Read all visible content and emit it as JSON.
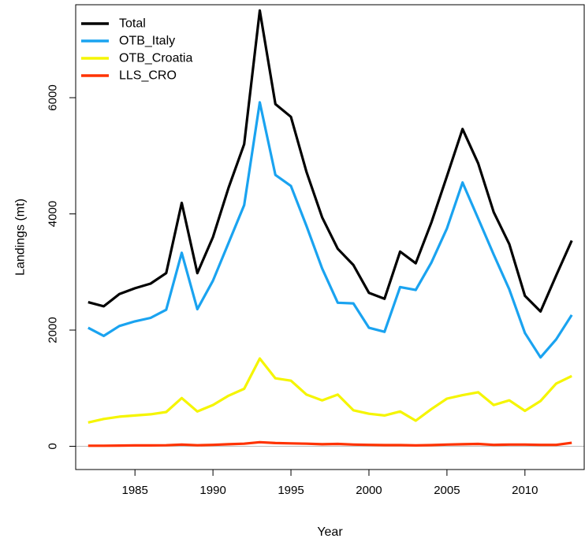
{
  "chart_data": {
    "type": "line",
    "title": "",
    "xlabel": "Year",
    "ylabel": "Landings (mt)",
    "xlim": [
      1981.2,
      2013.8
    ],
    "ylim": [
      -400,
      7600
    ],
    "x_ticks": [
      1985,
      1990,
      1995,
      2000,
      2005,
      2010
    ],
    "y_ticks": [
      0,
      2000,
      4000,
      6000
    ],
    "grid": false,
    "legend_position": "top-left",
    "zero_reference_line": true,
    "x": [
      1982,
      1983,
      1984,
      1985,
      1986,
      1987,
      1988,
      1989,
      1990,
      1991,
      1992,
      1993,
      1994,
      1995,
      1996,
      1997,
      1998,
      1999,
      2000,
      2001,
      2002,
      2003,
      2004,
      2005,
      2006,
      2007,
      2008,
      2009,
      2010,
      2011,
      2012,
      2013
    ],
    "series": [
      {
        "name": "Total",
        "color": "#000000",
        "values": [
          2480,
          2410,
          2620,
          2720,
          2800,
          2980,
          4190,
          2980,
          3600,
          4450,
          5200,
          7500,
          5890,
          5670,
          4720,
          3940,
          3400,
          3120,
          2640,
          2540,
          3350,
          3150,
          3850,
          4650,
          5460,
          4870,
          4030,
          3480,
          2590,
          2320,
          2940,
          3540
        ]
      },
      {
        "name": "OTB_Italy",
        "color": "#1aa3f0",
        "values": [
          2040,
          1900,
          2070,
          2150,
          2210,
          2350,
          3330,
          2360,
          2850,
          3500,
          4150,
          5920,
          4670,
          4480,
          3790,
          3060,
          2470,
          2460,
          2040,
          1970,
          2740,
          2690,
          3160,
          3750,
          4540,
          3920,
          3300,
          2700,
          1950,
          1530,
          1840,
          2260
        ]
      },
      {
        "name": "OTB_Croatia",
        "color": "#f5f500",
        "values": [
          410,
          470,
          510,
          530,
          550,
          590,
          830,
          600,
          710,
          870,
          990,
          1510,
          1170,
          1130,
          890,
          790,
          890,
          620,
          560,
          530,
          600,
          440,
          640,
          820,
          880,
          930,
          710,
          790,
          610,
          780,
          1080,
          1210
        ]
      },
      {
        "name": "LLS_CRO",
        "color": "#ff3300",
        "values": [
          10,
          10,
          12,
          15,
          15,
          18,
          30,
          18,
          25,
          35,
          45,
          70,
          55,
          50,
          45,
          35,
          40,
          30,
          25,
          20,
          20,
          15,
          20,
          30,
          35,
          40,
          25,
          30,
          30,
          25,
          25,
          60
        ]
      }
    ]
  }
}
